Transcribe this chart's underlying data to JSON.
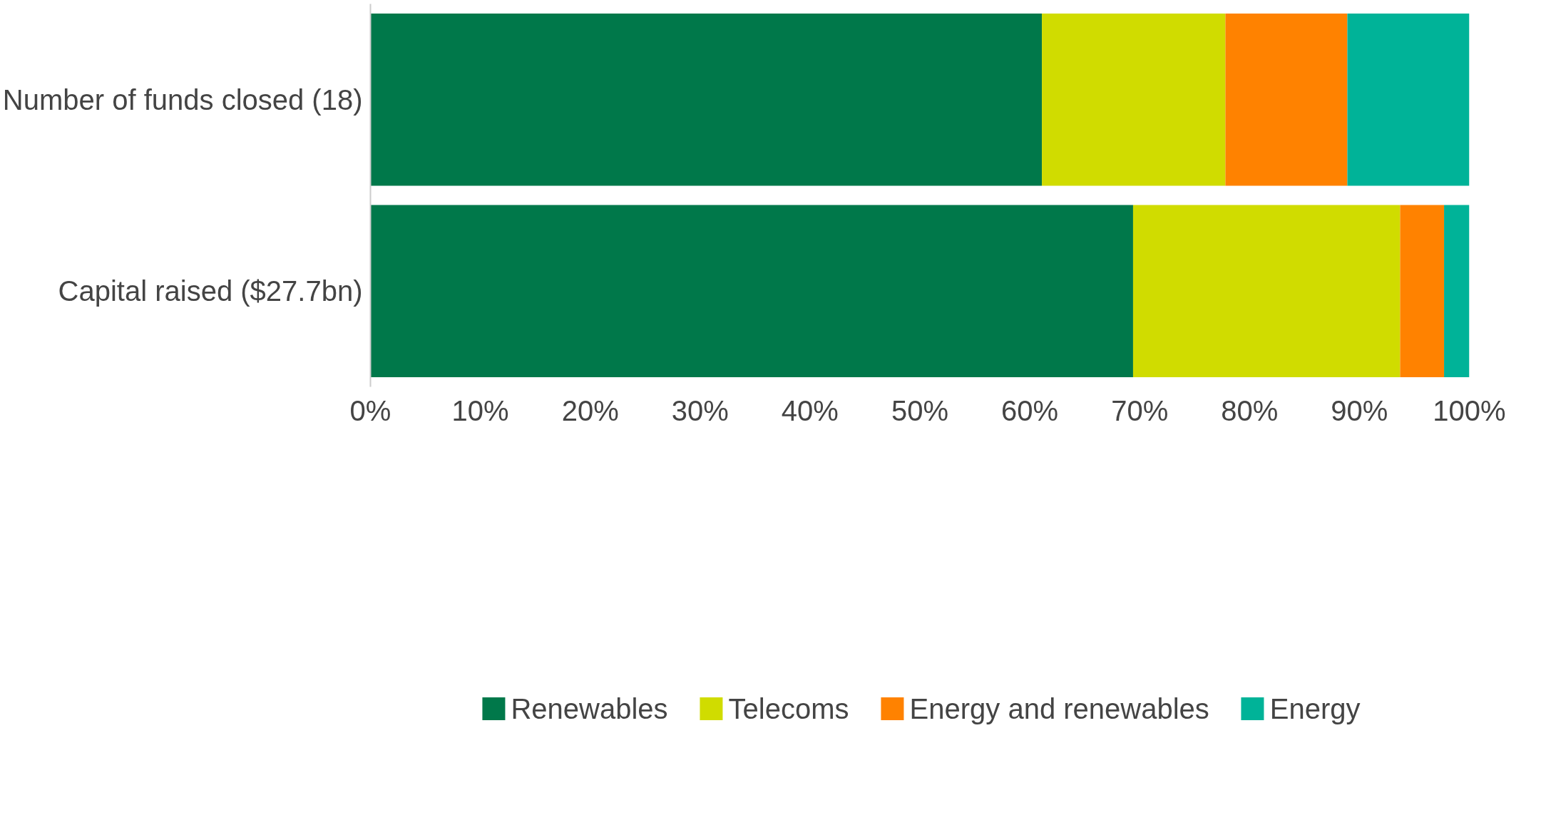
{
  "chart_data": {
    "type": "bar",
    "orientation": "horizontal",
    "stacked": true,
    "categories": [
      "Number of funds closed (18)",
      "Capital raised ($27.7bn)"
    ],
    "series": [
      {
        "name": "Renewables",
        "color": "#00784a",
        "values": [
          61.1,
          69.4
        ]
      },
      {
        "name": "Telecoms",
        "color": "#d0dc00",
        "values": [
          16.7,
          24.3
        ]
      },
      {
        "name": "Energy and renewables",
        "color": "#ff8200",
        "values": [
          11.1,
          4.0
        ]
      },
      {
        "name": "Energy",
        "color": "#00b398",
        "values": [
          11.1,
          2.3
        ]
      }
    ],
    "xlim": [
      0,
      100
    ],
    "xticks": [
      {
        "value": 0,
        "label": "0%"
      },
      {
        "value": 10,
        "label": "10%"
      },
      {
        "value": 20,
        "label": "20%"
      },
      {
        "value": 30,
        "label": "30%"
      },
      {
        "value": 40,
        "label": "40%"
      },
      {
        "value": 50,
        "label": "50%"
      },
      {
        "value": 60,
        "label": "60%"
      },
      {
        "value": 70,
        "label": "70%"
      },
      {
        "value": 80,
        "label": "80%"
      },
      {
        "value": 90,
        "label": "90%"
      },
      {
        "value": 100,
        "label": "100%"
      }
    ],
    "grid": false,
    "legend": "bottom"
  }
}
